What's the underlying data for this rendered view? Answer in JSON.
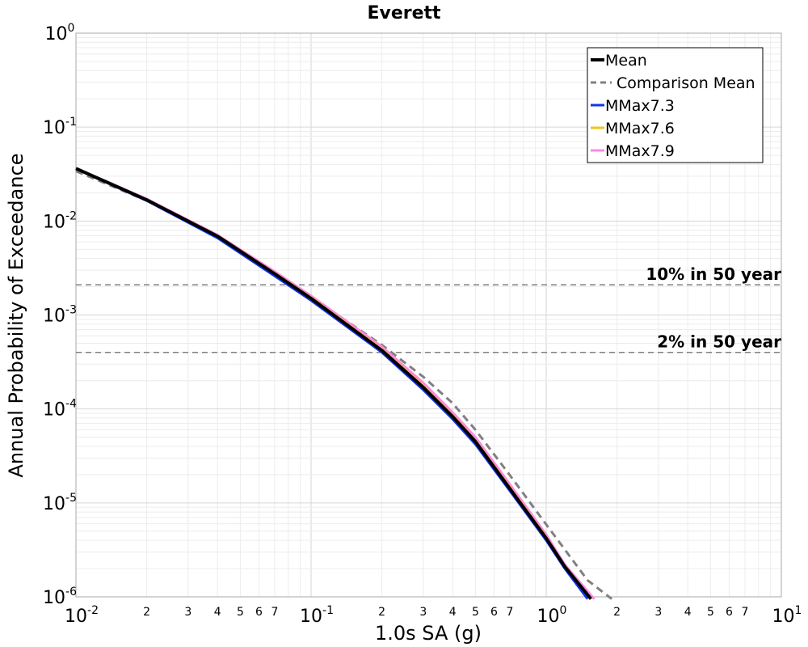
{
  "chart_data": {
    "type": "line",
    "title": "Everett",
    "xlabel": "1.0s SA (g)",
    "ylabel": "Annual Probability of Exceedance",
    "xscale": "log",
    "yscale": "log",
    "xlim": [
      0.01,
      10
    ],
    "ylim": [
      1e-06,
      1
    ],
    "grid": true,
    "legend_position": "top-right",
    "x_major_ticks": [
      {
        "value": 0.01,
        "base": "10",
        "exp": "-2"
      },
      {
        "value": 0.1,
        "base": "10",
        "exp": "-1"
      },
      {
        "value": 1,
        "base": "10",
        "exp": "0"
      },
      {
        "value": 10,
        "base": "10",
        "exp": "1"
      }
    ],
    "x_minor_tick_labels": [
      "2",
      "3",
      "4",
      "5",
      "6",
      "7"
    ],
    "y_major_ticks": [
      {
        "value": 1,
        "base": "10",
        "exp": "0"
      },
      {
        "value": 0.1,
        "base": "10",
        "exp": "-1"
      },
      {
        "value": 0.01,
        "base": "10",
        "exp": "-2"
      },
      {
        "value": 0.001,
        "base": "10",
        "exp": "-3"
      },
      {
        "value": 0.0001,
        "base": "10",
        "exp": "-4"
      },
      {
        "value": 1e-05,
        "base": "10",
        "exp": "-5"
      },
      {
        "value": 1e-06,
        "base": "10",
        "exp": "-6"
      }
    ],
    "reference_lines": [
      {
        "label": "10% in 50 year",
        "y": 0.0021,
        "color": "#808080"
      },
      {
        "label": "2% in 50 year",
        "y": 0.0004,
        "color": "#808080"
      }
    ],
    "series": [
      {
        "name": "Comparison Mean",
        "color": "#808080",
        "style": "dashed",
        "x": [
          0.01,
          0.02,
          0.04,
          0.07,
          0.1,
          0.2,
          0.3,
          0.4,
          0.5,
          0.7,
          1.0,
          1.5,
          1.9
        ],
        "y": [
          0.034,
          0.0165,
          0.0068,
          0.0028,
          0.00155,
          0.00048,
          0.00022,
          0.000115,
          6e-05,
          1.98e-05,
          5.9e-06,
          1.5e-06,
          9.5e-07
        ]
      },
      {
        "name": "MMax7.9",
        "color": "#ff88dd",
        "style": "solid",
        "x": [
          0.01,
          0.02,
          0.04,
          0.07,
          0.1,
          0.2,
          0.3,
          0.4,
          0.5,
          0.7,
          1.0,
          1.2,
          1.6
        ],
        "y": [
          0.0365,
          0.0172,
          0.0071,
          0.0029,
          0.0016,
          0.00046,
          0.00019,
          9.2e-05,
          5e-05,
          1.58e-05,
          4.6e-06,
          2.2e-06,
          9.5e-07
        ]
      },
      {
        "name": "MMax7.6",
        "color": "#f2c418",
        "style": "solid",
        "x": [
          0.01,
          0.02,
          0.04,
          0.07,
          0.1,
          0.2,
          0.3,
          0.4,
          0.5,
          0.7,
          1.0,
          1.2,
          1.55
        ],
        "y": [
          0.0362,
          0.0169,
          0.0069,
          0.00278,
          0.00153,
          0.00043,
          0.000175,
          8.5e-05,
          4.6e-05,
          1.46e-05,
          4.3e-06,
          2.1e-06,
          9.5e-07
        ]
      },
      {
        "name": "MMax7.3",
        "color": "#1133ee",
        "style": "solid",
        "x": [
          0.01,
          0.02,
          0.04,
          0.07,
          0.1,
          0.2,
          0.3,
          0.4,
          0.5,
          0.7,
          1.0,
          1.2,
          1.5
        ],
        "y": [
          0.036,
          0.0165,
          0.0066,
          0.0026,
          0.00143,
          0.0004,
          0.00016,
          7.8e-05,
          4.2e-05,
          1.35e-05,
          4e-06,
          2e-06,
          9.5e-07
        ]
      },
      {
        "name": "Mean",
        "color": "#000000",
        "style": "solid",
        "x": [
          0.01,
          0.02,
          0.04,
          0.07,
          0.1,
          0.2,
          0.3,
          0.4,
          0.5,
          0.7,
          1.0,
          1.2,
          1.55
        ],
        "y": [
          0.0363,
          0.0168,
          0.0069,
          0.00275,
          0.0015,
          0.00042,
          0.00017,
          8.3e-05,
          4.5e-05,
          1.42e-05,
          4.2e-06,
          2.1e-06,
          9.5e-07
        ]
      }
    ],
    "legend": [
      {
        "name": "Mean",
        "color": "#000000",
        "style": "solid"
      },
      {
        "name": "Comparison Mean",
        "color": "#808080",
        "style": "dashed"
      },
      {
        "name": "MMax7.3",
        "color": "#1133ee",
        "style": "solid"
      },
      {
        "name": "MMax7.6",
        "color": "#f2c418",
        "style": "solid"
      },
      {
        "name": "MMax7.9",
        "color": "#ff88dd",
        "style": "solid"
      }
    ]
  }
}
